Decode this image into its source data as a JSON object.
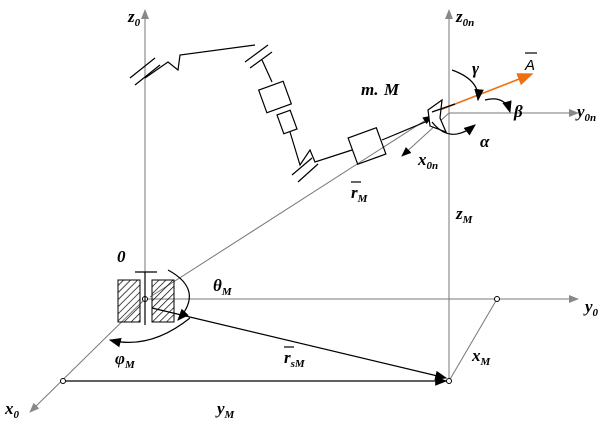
{
  "labels": [
    {
      "text": "z",
      "sub": "0"
    },
    {
      "text": "z",
      "sub": "0n"
    },
    {
      "text": "0"
    },
    {
      "text": "θ",
      "sub": "M"
    },
    {
      "text": "y",
      "sub": "0"
    },
    {
      "text": "x",
      "sub": "0"
    },
    {
      "text": "φ",
      "sub": "M"
    },
    {
      "text": "r",
      "sub": "sM"
    },
    {
      "text": "x",
      "sub": "M"
    },
    {
      "text": "y",
      "sub": "M"
    },
    {
      "text": "z",
      "sub": "M"
    },
    {
      "text": "r",
      "sub": "M"
    },
    {
      "text": "m."
    },
    {
      "text": "M"
    },
    {
      "text": "γ"
    },
    {
      "text": "A"
    },
    {
      "text": "β"
    },
    {
      "text": "y",
      "sub": "0n"
    },
    {
      "text": "α"
    },
    {
      "text": "x",
      "sub": "0n"
    }
  ]
}
